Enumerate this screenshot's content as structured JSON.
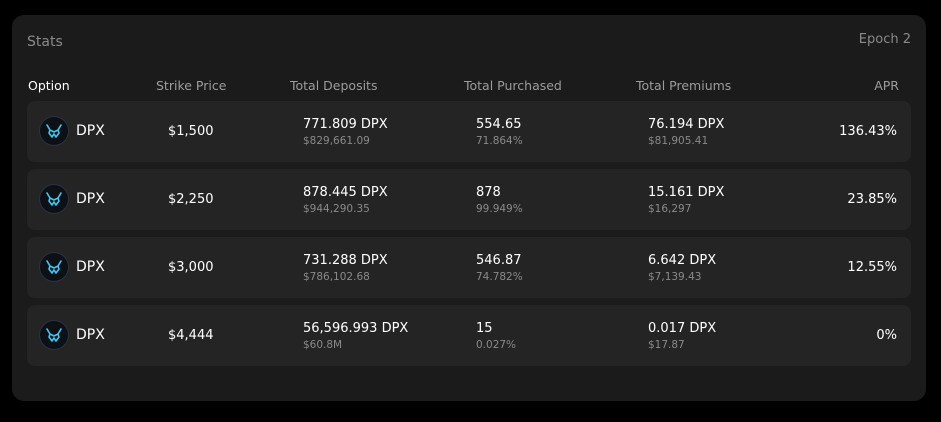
{
  "title": "Stats",
  "epoch": "Epoch 2",
  "columns": {
    "option": "Option",
    "strike": "Strike Price",
    "deposits": "Total Deposits",
    "purchased": "Total Purchased",
    "premiums": "Total Premiums",
    "apr": "APR"
  },
  "colors": {
    "background": "#000000",
    "panel": "#1b1b1b",
    "row": "#242424",
    "text": "#ffffff",
    "muted": "#8a8a8a",
    "icon_accent": "#3fc8f0"
  },
  "rows": [
    {
      "icon": "dpx-token-icon",
      "asset": "DPX",
      "strike": "$1,500",
      "deposits": "771.809 DPX",
      "deposits_usd": "$829,661.09",
      "purchased": "554.65",
      "purchased_pct": "71.864%",
      "premiums": "76.194 DPX",
      "premiums_usd": "$81,905.41",
      "apr": "136.43%"
    },
    {
      "icon": "dpx-token-icon",
      "asset": "DPX",
      "strike": "$2,250",
      "deposits": "878.445 DPX",
      "deposits_usd": "$944,290.35",
      "purchased": "878",
      "purchased_pct": "99.949%",
      "premiums": "15.161 DPX",
      "premiums_usd": "$16,297",
      "apr": "23.85%"
    },
    {
      "icon": "dpx-token-icon",
      "asset": "DPX",
      "strike": "$3,000",
      "deposits": "731.288 DPX",
      "deposits_usd": "$786,102.68",
      "purchased": "546.87",
      "purchased_pct": "74.782%",
      "premiums": "6.642 DPX",
      "premiums_usd": "$7,139.43",
      "apr": "12.55%"
    },
    {
      "icon": "dpx-token-icon",
      "asset": "DPX",
      "strike": "$4,444",
      "deposits": "56,596.993 DPX",
      "deposits_usd": "$60.8M",
      "purchased": "15",
      "purchased_pct": "0.027%",
      "premiums": "0.017 DPX",
      "premiums_usd": "$17.87",
      "apr": "0%"
    }
  ]
}
